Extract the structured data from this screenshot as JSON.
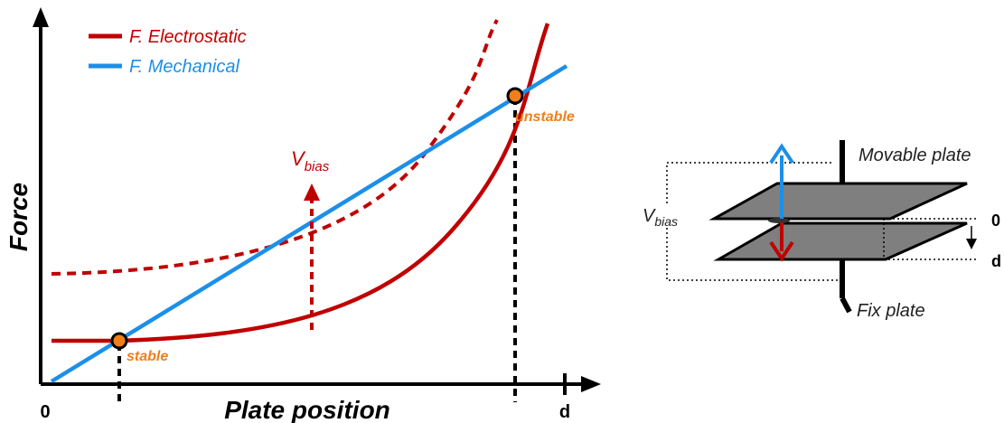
{
  "plot": {
    "legend": [
      "F. Electrostatic",
      "F. Mechanical"
    ],
    "y_label": "Force",
    "x_label": "Plate position",
    "x_start": "0",
    "x_end": "d",
    "points": [
      "stable",
      "unstable"
    ],
    "arrow_label": {
      "main": "V",
      "sub": "bias"
    }
  },
  "schematic": {
    "top_label": "Movable plate",
    "bottom_label": "Fix plate",
    "voltage": {
      "main": "V",
      "sub": "bias"
    },
    "gap_start": "0",
    "gap_end": "d"
  }
}
